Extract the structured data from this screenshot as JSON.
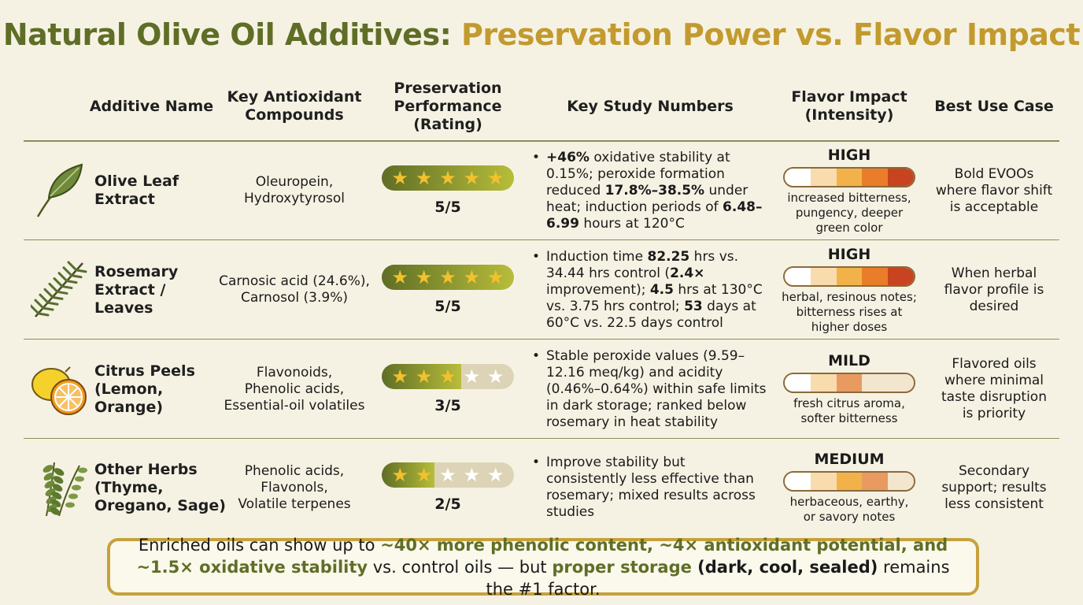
{
  "title": {
    "part1": "Natural Olive Oil Additives:",
    "part2": "Preservation Power vs. Flavor Impact"
  },
  "headers": {
    "name": "Additive Name",
    "compounds": "Key Antioxidant\nCompounds",
    "performance": "Preservation\nPerformance\n(Rating)",
    "study": "Key Study Numbers",
    "flavor": "Flavor Impact\n(Intensity)",
    "best_use": "Best Use Case"
  },
  "rows": [
    {
      "name": "Olive Leaf\nExtract",
      "icon": "olive-leaf-icon",
      "compounds": "Oleuropein,\nHydroxytyrosol",
      "stars": 5,
      "rating": "5/5",
      "study": [
        {
          "t": "+46%",
          "b": true
        },
        {
          "t": " oxidative stability at 0.15%; peroxide formation reduced "
        },
        {
          "t": "17.8%–38.5%",
          "b": true
        },
        {
          "t": " under heat; induction periods of "
        },
        {
          "t": "6.48–6.99",
          "b": true
        },
        {
          "t": " hours at 120°C"
        }
      ],
      "flavor_level": "HIGH",
      "flavor_fill": 1.0,
      "flavor_desc": "increased bitterness,\npungency, deeper\ngreen color",
      "best_use": "Bold EVOOs\nwhere flavor shift\nis acceptable"
    },
    {
      "name": "Rosemary\nExtract / Leaves",
      "icon": "rosemary-icon",
      "compounds": "Carnosic acid (24.6%),\nCarnosol (3.9%)",
      "stars": 5,
      "rating": "5/5",
      "study": [
        {
          "t": "Induction time "
        },
        {
          "t": "82.25",
          "b": true
        },
        {
          "t": " hrs vs. 34.44 hrs control ("
        },
        {
          "t": "2.4×",
          "b": true
        },
        {
          "t": " improvement); "
        },
        {
          "t": "4.5",
          "b": true
        },
        {
          "t": " hrs at 130°C vs. 3.75 hrs control; "
        },
        {
          "t": "53",
          "b": true
        },
        {
          "t": " days at 60°C vs. 22.5 days control"
        }
      ],
      "flavor_level": "HIGH",
      "flavor_fill": 1.0,
      "flavor_desc": "herbal, resinous notes;\nbitterness rises at\nhigher doses",
      "best_use": "When herbal\nflavor profile is\ndesired"
    },
    {
      "name": "Citrus Peels\n(Lemon,\nOrange)",
      "icon": "citrus-icon",
      "compounds": "Flavonoids,\nPhenolic acids,\nEssential-oil volatiles",
      "stars": 3,
      "rating": "3/5",
      "study": [
        {
          "t": "Stable peroxide values (9.59–12.16 meq/kg) and acidity (0.46%–0.64%) within safe limits in dark storage; ranked below rosemary in heat stability"
        }
      ],
      "flavor_level": "MILD",
      "flavor_fill": 0.55,
      "flavor_desc": "fresh citrus aroma,\nsofter bitterness",
      "best_use": "Flavored oils\nwhere minimal\ntaste disruption\nis priority"
    },
    {
      "name": "Other Herbs\n(Thyme,\nOregano, Sage)",
      "icon": "herbs-icon",
      "compounds": "Phenolic acids,\nFlavonols,\nVolatile terpenes",
      "stars": 2,
      "rating": "2/5",
      "study": [
        {
          "t": "Improve stability but consistently less effective than rosemary; mixed results across studies"
        }
      ],
      "flavor_level": "MEDIUM",
      "flavor_fill": 0.8,
      "flavor_desc": "herbaceous, earthy,\nor savory notes",
      "best_use": "Secondary\nsupport; results\nless consistent"
    }
  ],
  "footer": [
    {
      "t": "Enriched oils can show up to "
    },
    {
      "t": "~40× more phenolic content, ~4× antioxidant potential, and ~1.5× oxidative stability",
      "c": "g"
    },
    {
      "t": " vs. control oils — but "
    },
    {
      "t": "proper storage",
      "c": "g"
    },
    {
      "t": " (dark, cool, sealed)",
      "c": "b"
    },
    {
      "t": " remains the #1 factor."
    }
  ],
  "colors": {
    "title_green": "#5f6e26",
    "title_gold": "#c29a2e",
    "flavor_gradient": [
      "#ffffff",
      "#f8dcae",
      "#f2b24a",
      "#e97d2a",
      "#c8431f"
    ]
  }
}
